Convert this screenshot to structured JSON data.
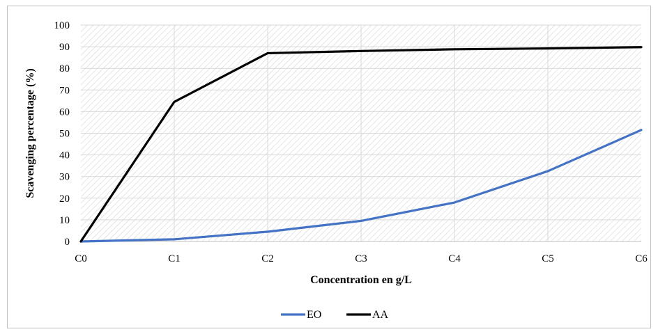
{
  "chart_data": {
    "type": "line",
    "title": "",
    "xlabel": "Concentration en g/L",
    "ylabel": "Scavenging percentage (%)",
    "categories": [
      "C0",
      "C1",
      "C2",
      "C3",
      "C4",
      "C5",
      "C6"
    ],
    "ylim": [
      0,
      100
    ],
    "yticks": [
      "0",
      "10",
      "20",
      "30",
      "40",
      "50",
      "60",
      "70",
      "80",
      "90",
      "100"
    ],
    "grid": true,
    "legend": "bottom",
    "series": [
      {
        "name": "EO",
        "color": "#4472C4",
        "values": [
          0,
          1,
          4.5,
          9.5,
          18,
          32.5,
          51.5
        ]
      },
      {
        "name": "AA",
        "color": "#000000",
        "values": [
          0,
          64.5,
          87,
          88,
          88.8,
          89.2,
          89.8
        ]
      }
    ]
  }
}
